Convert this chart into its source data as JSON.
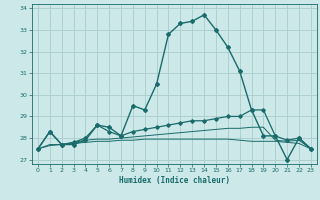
{
  "xlabel": "Humidex (Indice chaleur)",
  "xlim": [
    -0.5,
    23.5
  ],
  "ylim": [
    26.8,
    34.2
  ],
  "yticks": [
    27,
    28,
    29,
    30,
    31,
    32,
    33,
    34
  ],
  "xticks": [
    0,
    1,
    2,
    3,
    4,
    5,
    6,
    7,
    8,
    9,
    10,
    11,
    12,
    13,
    14,
    15,
    16,
    17,
    18,
    19,
    20,
    21,
    22,
    23
  ],
  "bg_color": "#cce8e8",
  "grid_color": "#aacccc",
  "line_color": "#1a6b6b",
  "line1_y": [
    27.5,
    28.3,
    27.7,
    27.7,
    27.9,
    28.6,
    28.5,
    28.1,
    29.5,
    29.3,
    30.5,
    32.8,
    33.3,
    33.4,
    33.7,
    33.0,
    32.2,
    31.1,
    29.3,
    28.1,
    28.1,
    27.0,
    28.0,
    27.5
  ],
  "line2_y": [
    27.5,
    28.3,
    27.7,
    27.8,
    28.0,
    28.6,
    28.3,
    28.1,
    28.3,
    28.4,
    28.5,
    28.6,
    28.7,
    28.8,
    28.8,
    28.9,
    29.0,
    29.0,
    29.3,
    29.3,
    28.1,
    27.9,
    28.0,
    27.5
  ],
  "line3_y": [
    27.5,
    27.7,
    27.7,
    27.8,
    27.9,
    27.95,
    27.95,
    28.0,
    28.05,
    28.1,
    28.15,
    28.2,
    28.25,
    28.3,
    28.35,
    28.4,
    28.45,
    28.45,
    28.5,
    28.5,
    27.9,
    27.85,
    27.9,
    27.5
  ],
  "line4_y": [
    27.5,
    27.65,
    27.7,
    27.75,
    27.8,
    27.85,
    27.85,
    27.9,
    27.9,
    27.95,
    27.95,
    27.95,
    27.95,
    27.95,
    27.95,
    27.95,
    27.95,
    27.9,
    27.85,
    27.85,
    27.85,
    27.8,
    27.75,
    27.5
  ]
}
